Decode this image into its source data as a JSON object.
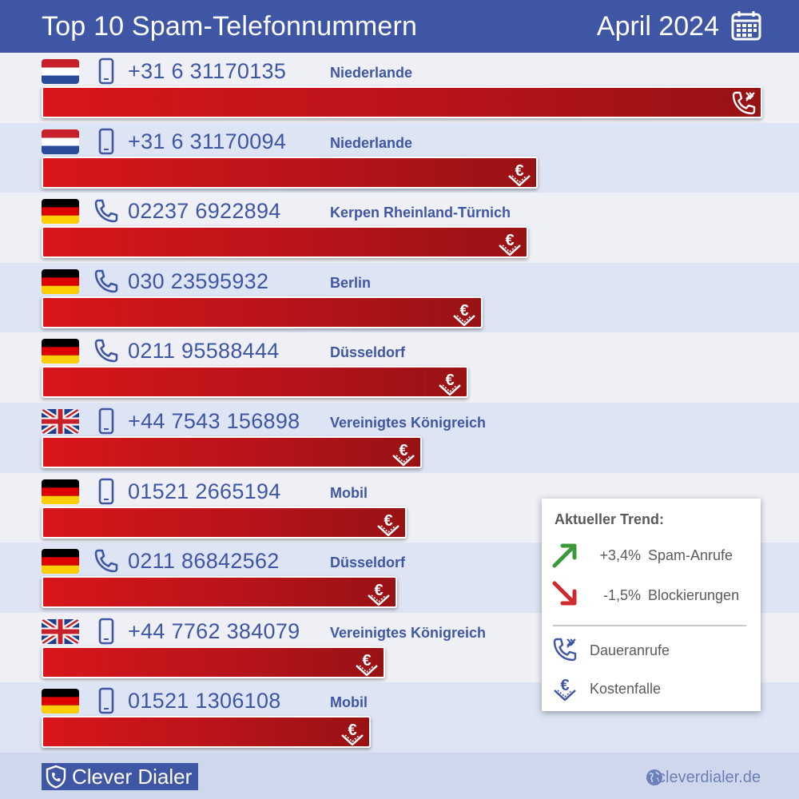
{
  "header": {
    "title": "Top 10 Spam-Telefonnummern",
    "date": "April 2024",
    "calendar_icon": "calendar-icon"
  },
  "chart_data": {
    "type": "bar",
    "orientation": "horizontal",
    "value_unit": "relative share of spam reports (longest bar = 1.0)",
    "categories": [
      "+31 6 31170135",
      "+31 6 31170094",
      "02237 6922894",
      "030 23595932",
      "0211 95588444",
      "+44 7543 156898",
      "01521 2665194",
      "0211 86842562",
      "+44 7762 384079",
      "01521 1306108"
    ],
    "values": [
      1.0,
      0.688,
      0.675,
      0.612,
      0.592,
      0.528,
      0.507,
      0.493,
      0.477,
      0.457
    ],
    "rows": [
      {
        "number": "+31 6 31170135",
        "location": "Niederlande",
        "flag": "netherlands",
        "device": "mobile",
        "category": "dauer",
        "value": 1.0
      },
      {
        "number": "+31 6 31170094",
        "location": "Niederlande",
        "flag": "netherlands",
        "device": "mobile",
        "category": "kosten",
        "value": 0.688
      },
      {
        "number": "02237 6922894",
        "location": "Kerpen Rheinland-Türnich",
        "flag": "germany",
        "device": "landline",
        "category": "kosten",
        "value": 0.675
      },
      {
        "number": "030 23595932",
        "location": "Berlin",
        "flag": "germany",
        "device": "landline",
        "category": "kosten",
        "value": 0.612
      },
      {
        "number": "0211 95588444",
        "location": "Düsseldorf",
        "flag": "germany",
        "device": "landline",
        "category": "kosten",
        "value": 0.592
      },
      {
        "number": "+44 7543 156898",
        "location": "Vereinigtes Königreich",
        "flag": "uk",
        "device": "mobile",
        "category": "kosten",
        "value": 0.528
      },
      {
        "number": "01521 2665194",
        "location": "Mobil",
        "flag": "germany",
        "device": "mobile",
        "category": "kosten",
        "value": 0.507
      },
      {
        "number": "0211 86842562",
        "location": "Düsseldorf",
        "flag": "germany",
        "device": "landline",
        "category": "kosten",
        "value": 0.493
      },
      {
        "number": "+44 7762 384079",
        "location": "Vereinigtes Königreich",
        "flag": "uk",
        "device": "mobile",
        "category": "kosten",
        "value": 0.477
      },
      {
        "number": "01521 1306108",
        "location": "Mobil",
        "flag": "germany",
        "device": "mobile",
        "category": "kosten",
        "value": 0.457
      }
    ],
    "bar_color": "#c8161b"
  },
  "legend": {
    "title": "Aktueller Trend:",
    "trends": [
      {
        "value": "+3,4%",
        "label": "Spam-Anrufe",
        "direction": "up",
        "color": "#3a9a3a"
      },
      {
        "value": "-1,5%",
        "label": "Blockierungen",
        "direction": "down",
        "color": "#d0292e"
      }
    ],
    "keys": [
      {
        "icon": "persistent-calls-icon",
        "label": "Daueranrufe"
      },
      {
        "icon": "cost-trap-icon",
        "label": "Kostenfalle"
      }
    ]
  },
  "footer": {
    "brand": "Clever Dialer",
    "url": "cleverdialer.de"
  },
  "colors": {
    "header_bg": "#3f56a5",
    "row_odd": "#eef0f6",
    "row_even": "#dde4f3",
    "footer_bg": "#cfd7ec",
    "text_blue": "#3f56a5"
  }
}
